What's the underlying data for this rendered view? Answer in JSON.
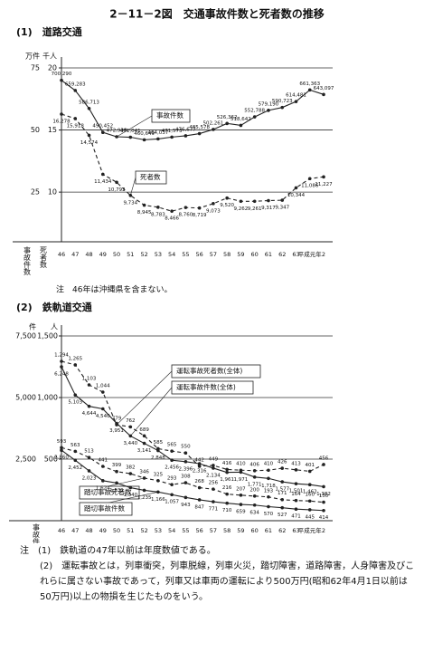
{
  "title": "2－11－2図　交通事故件数と死者数の推移",
  "chart_data": [
    {
      "type": "line",
      "subtitle": "(1)　道路交通",
      "note": "注　46年は沖縄県を含まない。",
      "ylabel": "万件",
      "y2label": "千人",
      "xlabels": [
        "事故件数",
        "死者数"
      ],
      "categories": [
        "46",
        "47",
        "48",
        "49",
        "50",
        "51",
        "52",
        "53",
        "54",
        "55",
        "56",
        "57",
        "58",
        "59",
        "60",
        "61",
        "62",
        "63",
        "平成元年",
        "2"
      ],
      "ylim": [
        5,
        75
      ],
      "yticks": [
        25,
        50,
        75
      ],
      "y2lim": [
        6,
        20
      ],
      "y2ticks": [
        10,
        15,
        20
      ],
      "grid": true,
      "series": [
        {
          "name": "事故件数",
          "color": "#222222",
          "style": "solid",
          "values": [
            70.029,
            65.9283,
            58.6713,
            49.0452,
            47.2938,
            47.1041,
            46.0649,
            46.4037,
            47.1573,
            47.6677,
            48.5578,
            50.2261,
            52.6362,
            51.8642,
            55.2788,
            57.919,
            59.0723,
            61.4481,
            66.1363,
            64.3097
          ],
          "value_labels": [
            "700,290",
            "659,283",
            "586,713",
            "490,452",
            "472,938",
            "471,041",
            "460,649",
            "464,037",
            "471,573",
            "476,677",
            "485,578",
            "502,261",
            "526,362",
            "518,642",
            "552,788",
            "579,190",
            "590,723",
            "614,481",
            "661,363",
            "643,097"
          ]
        },
        {
          "name": "死者数",
          "color": "#222222",
          "style": "dashed",
          "axis": "y2",
          "values": [
            16.278,
            15.918,
            14.574,
            11.434,
            10.792,
            9.734,
            8.945,
            8.783,
            8.466,
            8.76,
            8.719,
            9.073,
            9.52,
            9.262,
            9.261,
            9.317,
            9.347,
            10.344,
            11.086,
            11.227
          ],
          "value_labels": [
            "16,278",
            "15,918",
            "14,574",
            "11,434",
            "10,792",
            "9,734",
            "8,945",
            "8,783",
            "8,466",
            "8,760",
            "8,719",
            "9,073",
            "9,520",
            "9,262",
            "9,261",
            "9,317",
            "9,347",
            "10,344",
            "11,086",
            "11,227"
          ]
        }
      ]
    },
    {
      "type": "line",
      "subtitle": "(2)　鉄軌道交通",
      "ylabel": "件",
      "y2label": "人",
      "xlabels": [
        "事故件数"
      ],
      "categories": [
        "46",
        "47",
        "48",
        "49",
        "50",
        "51",
        "52",
        "53",
        "54",
        "55",
        "56",
        "57",
        "58",
        "59",
        "60",
        "61",
        "62",
        "63",
        "平成元年",
        "2"
      ],
      "ylim": [
        0,
        7500
      ],
      "yticks": [
        {
          "value": 2500,
          "label": "2,500"
        },
        {
          "value": 5000,
          "label": "5,000"
        },
        {
          "value": 7500,
          "label": "7,500"
        }
      ],
      "y2lim": [
        0,
        1500
      ],
      "y2ticks": [
        500,
        {
          "value": 1000,
          "label": "1,000"
        },
        {
          "value": 1500,
          "label": "1,500"
        }
      ],
      "grid": true,
      "series": [
        {
          "name": "運転事故死者数(全体)",
          "color": "#222222",
          "style": "dashed",
          "axis": "y2",
          "values": [
            1294,
            1265,
            1103,
            1044,
            779,
            762,
            689,
            585,
            565,
            550,
            442,
            449,
            416,
            410,
            406,
            410,
            426,
            413,
            401,
            456
          ],
          "value_labels": [
            "1,294",
            "1,265",
            "1,103",
            "1,044",
            "779",
            "762",
            "689",
            "585",
            "565",
            "550",
            "442",
            "449",
            "416",
            "410",
            "406",
            "410",
            "426",
            "413",
            "401",
            "456"
          ]
        },
        {
          "name": "運転事故件数(全体)",
          "color": "#222222",
          "style": "solid",
          "values": [
            6248,
            5103,
            4644,
            4540,
            3951,
            3440,
            3141,
            2848,
            2456,
            2396,
            2316,
            2134,
            1961,
            1971,
            1771,
            1718,
            1577,
            1501,
            1462,
            1382
          ],
          "value_labels": [
            "6,248",
            "5,103",
            "4,644",
            "4,540",
            "3,951",
            "3,440",
            "3,141",
            "2,848",
            "2,456",
            "2,396",
            "2,316",
            "2,134",
            "1,961",
            "1,971",
            "1,771",
            "1,718",
            "1,577",
            "1,501",
            "1,462",
            "1,382"
          ]
        },
        {
          "name": "踏切事故死者数",
          "color": "#222222",
          "style": "dashed",
          "axis": "y2",
          "values": [
            593,
            563,
            513,
            441,
            399,
            382,
            346,
            325,
            293,
            308,
            268,
            256,
            216,
            207,
            200,
            193,
            171,
            164,
            160,
            150
          ]
        },
        {
          "name": "踏切事故件数",
          "color": "#222222",
          "style": "solid",
          "values": [
            2860,
            2452,
            2023,
            1624,
            1531,
            1340,
            1235,
            1166,
            1057,
            943,
            847,
            771,
            710,
            659,
            634,
            570,
            527,
            471,
            445,
            414
          ],
          "value_labels": [
            "2,860",
            "2,452",
            "2,023",
            "1,624",
            "1,531",
            "1,340",
            "1,235",
            "1,166",
            "1,057",
            "943",
            "847",
            "771",
            "710",
            "659",
            "634",
            "570",
            "527",
            "471",
            "445",
            "414"
          ]
        }
      ]
    }
  ],
  "notes": [
    "注　(1)　鉄軌道の47年以前は年度数値である。",
    "(2)　運転事故とは，列車衝突，列車脱線，列車火災，踏切障害，道路障害，人身障害及びこれらに属さない事故であって，列車又は車両の運転により500万円(昭和62年4月1日以前は50万円)以上の物損を生じたものをいう。"
  ]
}
